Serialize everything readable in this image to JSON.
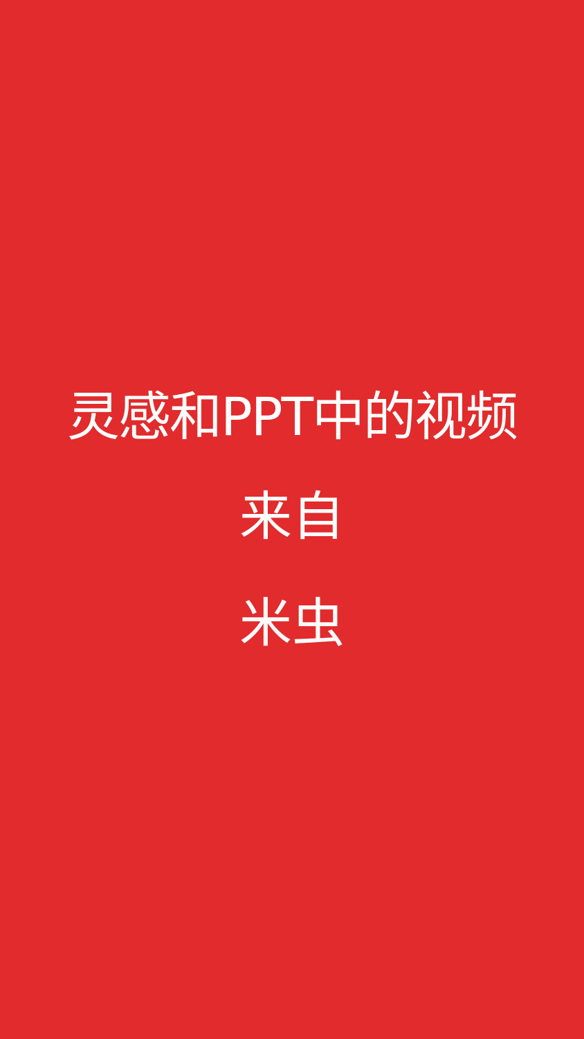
{
  "screen": {
    "background_color": "#e12b2c",
    "text_color": "#ffffff",
    "headline": "灵感和PPT中的视频",
    "from_label": "来自",
    "author": "米虫"
  }
}
